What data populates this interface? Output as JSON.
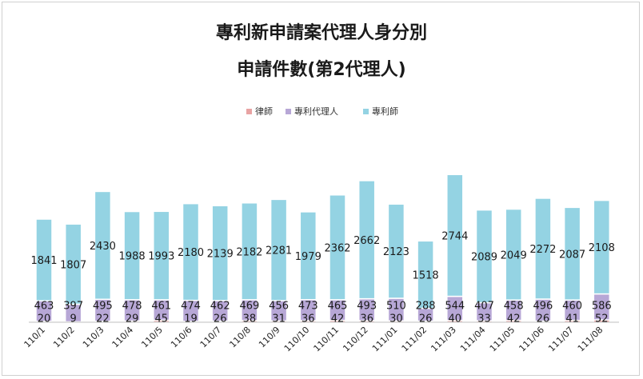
{
  "chart_data": {
    "type": "bar",
    "stacked": true,
    "title_lines": [
      "專利新申請案代理人身分別",
      "申請件數(第2代理人)"
    ],
    "legend_position": "top",
    "categories": [
      "110/1",
      "110/2",
      "110/3",
      "110/4",
      "110/5",
      "110/6",
      "110/7",
      "110/8",
      "110/9",
      "110/10",
      "110/11",
      "110/12",
      "111/01",
      "111/02",
      "111/03",
      "111/04",
      "111/05",
      "111/06",
      "111/07",
      "111/08"
    ],
    "series": [
      {
        "name": "律師",
        "color": "#e8a3a3",
        "values": [
          20,
          9,
          22,
          29,
          45,
          19,
          26,
          38,
          31,
          36,
          42,
          36,
          30,
          26,
          40,
          33,
          42,
          26,
          41,
          52
        ]
      },
      {
        "name": "專利代理人",
        "color": "#b7a7d6",
        "values": [
          463,
          397,
          495,
          478,
          461,
          474,
          462,
          469,
          456,
          473,
          465,
          493,
          510,
          288,
          544,
          407,
          458,
          496,
          460,
          586
        ]
      },
      {
        "name": "專利師",
        "color": "#94d3e3",
        "values": [
          1841,
          1807,
          2430,
          1988,
          1993,
          2180,
          2139,
          2182,
          2281,
          1979,
          2362,
          2662,
          2123,
          1518,
          2744,
          2089,
          2049,
          2272,
          2087,
          2108
        ]
      }
    ],
    "grid": false
  }
}
